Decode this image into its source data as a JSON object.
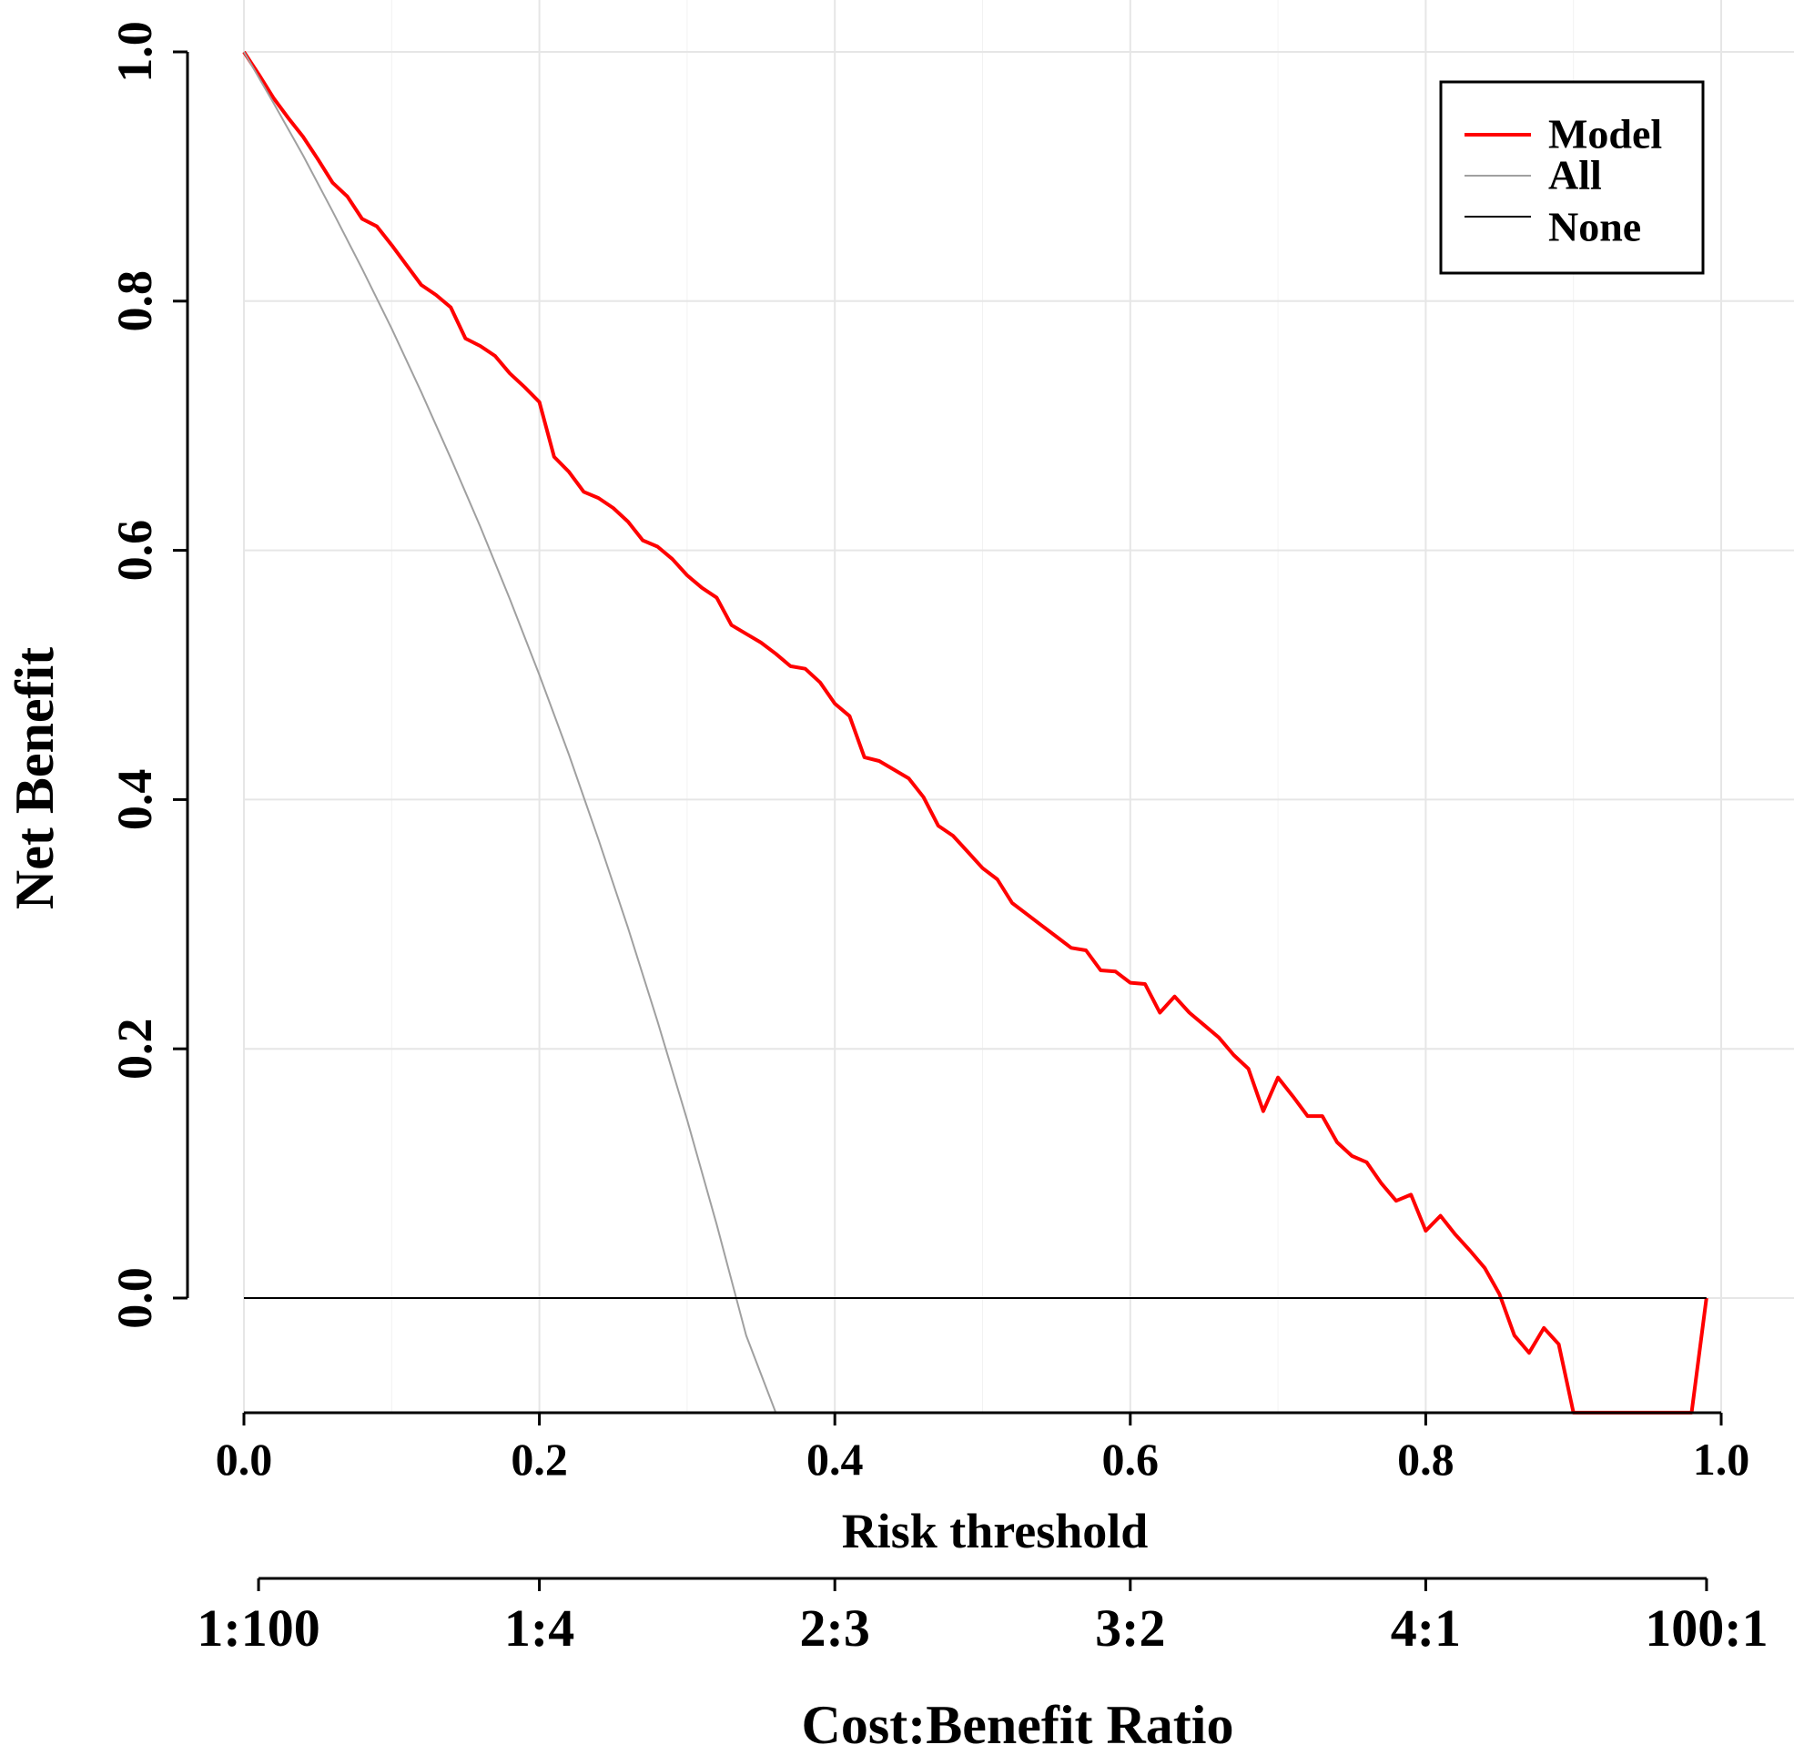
{
  "chart_data": {
    "type": "line",
    "title": "",
    "ylabel": "Net Benefit",
    "xlabel": "Risk threshold",
    "x2label": "Cost:Benefit Ratio",
    "xlim": [
      0,
      1
    ],
    "ylim": [
      -0.092,
      1.0
    ],
    "xticks": [
      "0.0",
      "0.2",
      "0.4",
      "0.6",
      "0.8",
      "1.0"
    ],
    "yticks": [
      "0.0",
      "0.2",
      "0.4",
      "0.6",
      "0.8",
      "1.0"
    ],
    "x2ticks": [
      {
        "x": 0.0099,
        "label": "1:100"
      },
      {
        "x": 0.2,
        "label": "1:4"
      },
      {
        "x": 0.4,
        "label": "2:3"
      },
      {
        "x": 0.6,
        "label": "3:2"
      },
      {
        "x": 0.8,
        "label": "4:1"
      },
      {
        "x": 0.9901,
        "label": "100:1"
      }
    ],
    "grid": true,
    "legend_position": "top-right",
    "series": [
      {
        "name": "Model",
        "color": "#ff0000",
        "x": [
          0.0,
          0.01,
          0.02,
          0.03,
          0.04,
          0.05,
          0.06,
          0.07,
          0.08,
          0.09,
          0.1,
          0.11,
          0.12,
          0.13,
          0.14,
          0.15,
          0.16,
          0.17,
          0.18,
          0.19,
          0.2,
          0.21,
          0.22,
          0.23,
          0.24,
          0.25,
          0.26,
          0.27,
          0.28,
          0.29,
          0.3,
          0.31,
          0.32,
          0.33,
          0.34,
          0.35,
          0.36,
          0.37,
          0.38,
          0.39,
          0.4,
          0.41,
          0.42,
          0.43,
          0.44,
          0.45,
          0.46,
          0.47,
          0.48,
          0.49,
          0.5,
          0.51,
          0.52,
          0.53,
          0.54,
          0.55,
          0.56,
          0.57,
          0.58,
          0.59,
          0.6,
          0.61,
          0.62,
          0.63,
          0.64,
          0.65,
          0.66,
          0.67,
          0.68,
          0.69,
          0.7,
          0.71,
          0.72,
          0.73,
          0.74,
          0.75,
          0.76,
          0.77,
          0.78,
          0.79,
          0.8,
          0.81,
          0.82,
          0.83,
          0.84,
          0.85,
          0.86,
          0.87,
          0.88,
          0.89,
          0.9,
          0.98,
          0.99
        ],
        "y": [
          1.0,
          0.982,
          0.963,
          0.947,
          0.932,
          0.914,
          0.895,
          0.884,
          0.866,
          0.86,
          0.845,
          0.829,
          0.813,
          0.805,
          0.795,
          0.77,
          0.764,
          0.756,
          0.742,
          0.731,
          0.719,
          0.675,
          0.663,
          0.647,
          0.642,
          0.634,
          0.623,
          0.608,
          0.603,
          0.593,
          0.58,
          0.57,
          0.562,
          0.54,
          0.533,
          0.526,
          0.517,
          0.507,
          0.505,
          0.494,
          0.477,
          0.467,
          0.434,
          0.431,
          0.424,
          0.417,
          0.402,
          0.379,
          0.371,
          0.358,
          0.345,
          0.336,
          0.317,
          0.308,
          0.299,
          0.29,
          0.281,
          0.279,
          0.263,
          0.262,
          0.253,
          0.252,
          0.229,
          0.242,
          0.229,
          0.219,
          0.209,
          0.195,
          0.184,
          0.15,
          0.177,
          0.162,
          0.146,
          0.146,
          0.125,
          0.114,
          0.109,
          0.092,
          0.078,
          0.083,
          0.054,
          0.066,
          0.051,
          0.038,
          0.024,
          0.003,
          -0.03,
          -0.044,
          -0.024,
          -0.037,
          -0.092,
          -0.092,
          0.0
        ]
      },
      {
        "name": "All",
        "color": "#a0a0a0",
        "x": [
          0.0,
          0.02,
          0.04,
          0.06,
          0.08,
          0.1,
          0.12,
          0.14,
          0.16,
          0.18,
          0.2,
          0.22,
          0.24,
          0.26,
          0.28,
          0.3,
          0.32,
          0.34,
          0.36
        ],
        "y": [
          1.0,
          0.959,
          0.917,
          0.872,
          0.826,
          0.778,
          0.727,
          0.674,
          0.619,
          0.561,
          0.5,
          0.436,
          0.368,
          0.297,
          0.222,
          0.143,
          0.059,
          -0.03,
          -0.092
        ]
      },
      {
        "name": "None",
        "color": "#000000",
        "x": [
          0.0,
          0.99
        ],
        "y": [
          0.0,
          0.0
        ]
      }
    ]
  }
}
